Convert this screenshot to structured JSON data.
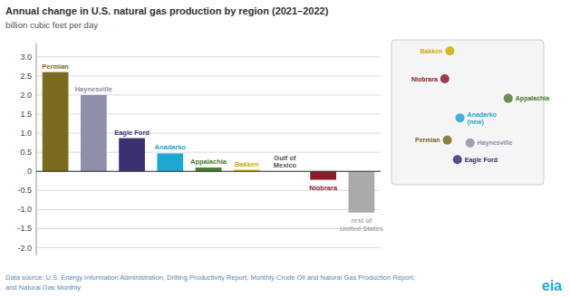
{
  "chart_data": {
    "type": "bar",
    "title": "Annual change in U.S. natural gas production by region (2021–2022)",
    "subtitle": "billion cubic feet per day",
    "categories": [
      "Permian",
      "Haynesville",
      "Eagle Ford",
      "Anadarko",
      "Appalachia",
      "Bakken",
      "Gulf of\nMexico",
      "Niobrara",
      "rest of\nUnited States"
    ],
    "values": [
      2.6,
      2.0,
      0.87,
      0.47,
      0.1,
      0.04,
      0.0,
      -0.22,
      -1.08
    ],
    "colors": [
      "#7a6b20",
      "#8e8fa8",
      "#3d3070",
      "#1da8d4",
      "#4a7c2f",
      "#d4aa00",
      "#ffffff",
      "#8b1a2a",
      "#aaaaaa"
    ],
    "ylim": [
      -2.2,
      3.35
    ],
    "yticks": [
      {
        "value": -2.0,
        "label": "-2.0"
      },
      -1.5,
      {
        "value": -1.0,
        "label": "-1.0"
      },
      -0.5,
      0,
      0.5,
      {
        "value": 1.0,
        "label": "1.0"
      },
      1.5,
      {
        "value": 2.0,
        "label": "2.0"
      },
      2.5,
      {
        "value": 3.0,
        "label": "3.0"
      }
    ],
    "grid": true,
    "map_regions": [
      {
        "name": "Bakken",
        "color": "#d4aa00",
        "lon": -102,
        "lat": 48.0
      },
      {
        "name": "Niobrara",
        "color": "#8b1a2a",
        "lon": -104,
        "lat": 43.0
      },
      {
        "name": "Anadarko\n(new)",
        "color": "#1da8d4",
        "lon": -98,
        "lat": 36.0
      },
      {
        "name": "Appalachia",
        "color": "#4a7c2f",
        "lon": -79,
        "lat": 39.5
      },
      {
        "name": "Permian",
        "color": "#7a6b20",
        "lon": -103,
        "lat": 32.0
      },
      {
        "name": "Eagle Ford",
        "color": "#3d3070",
        "lon": -99,
        "lat": 28.5
      },
      {
        "name": "Haynesville",
        "color": "#8e8fa8",
        "lon": -94,
        "lat": 31.5
      }
    ],
    "footnote": [
      "Data source: U.S. Energy Information Administration, Drilling Productivity Report, Monthly Crude Oil and Natural Gas Production Report,",
      "and Natural Gas Monthly"
    ],
    "annotations": [
      "eia"
    ]
  }
}
